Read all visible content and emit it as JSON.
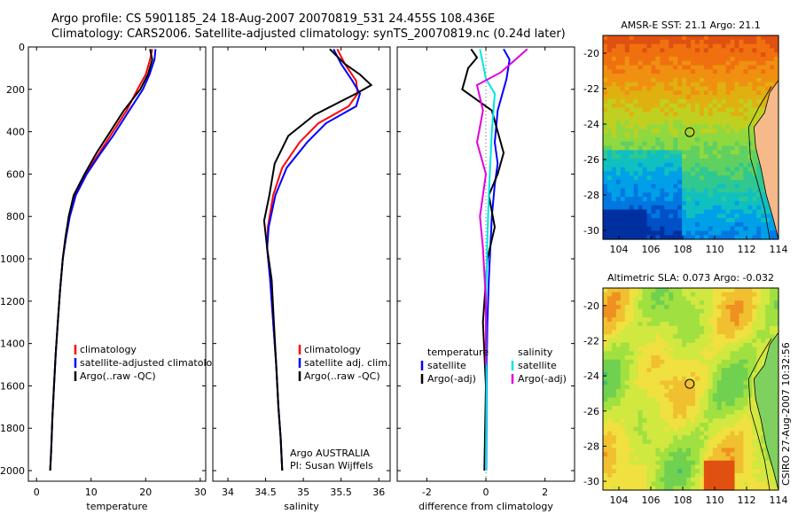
{
  "header": {
    "line1": "Argo profile: CS 5901185_24 18-Aug-2007 20070819_531 24.455S 108.436E",
    "line2": "Climatology: CARS2006. Satellite-adjusted climatology: synTS_20070819.nc (0.24d later)"
  },
  "colors": {
    "climatology": "#ff0000",
    "satellite": "#0000ff",
    "argo": "#000000",
    "salinity_satellite": "#00e5e5",
    "salinity_argo": "#e000e0"
  },
  "chart_data": [
    {
      "type": "line",
      "id": "temperature",
      "xlabel": "temperature",
      "ylim": [
        0,
        2050
      ],
      "xlim": [
        -1.5,
        31
      ],
      "xticks": [
        "0",
        "10",
        "20",
        "30"
      ],
      "yticks": [
        "0",
        "200",
        "400",
        "600",
        "800",
        "1000",
        "1200",
        "1400",
        "1600",
        "1800",
        "2000"
      ],
      "y_inverted": true,
      "legend": [
        "climatology",
        "satellite-adjusted climatolo",
        "Argo(..raw -QC)"
      ],
      "series": [
        {
          "name": "climatology",
          "color": "#ff0000",
          "x": [
            21.2,
            20.8,
            20.0,
            18.5,
            16.5,
            13.5,
            11.5,
            9.0,
            7.0,
            6.0,
            5.3,
            4.8,
            4.3,
            3.9,
            3.5,
            3.2,
            2.9,
            2.7,
            2.5
          ],
          "y": [
            10,
            60,
            130,
            200,
            300,
            420,
            500,
            600,
            700,
            800,
            900,
            1000,
            1150,
            1300,
            1450,
            1600,
            1750,
            1900,
            2000
          ]
        },
        {
          "name": "satellite-adjusted climatology",
          "color": "#0000ff",
          "x": [
            21.8,
            21.6,
            20.7,
            19.5,
            17.0,
            14.0,
            11.8,
            9.2,
            7.2,
            6.1,
            5.4,
            4.8,
            4.3,
            3.9,
            3.5,
            3.2,
            2.9,
            2.7,
            2.5
          ],
          "y": [
            10,
            60,
            130,
            200,
            300,
            420,
            500,
            600,
            700,
            800,
            900,
            1000,
            1150,
            1300,
            1450,
            1600,
            1750,
            1900,
            2000
          ]
        },
        {
          "name": "Argo(..raw -QC)",
          "color": "#000000",
          "x": [
            20.8,
            21.2,
            20.4,
            19.0,
            16.0,
            13.0,
            11.0,
            8.8,
            6.8,
            5.9,
            5.3,
            4.8,
            4.3,
            3.9,
            3.5,
            3.2,
            2.9,
            2.7,
            2.5
          ],
          "y": [
            10,
            60,
            130,
            200,
            300,
            420,
            500,
            600,
            700,
            800,
            900,
            1000,
            1150,
            1300,
            1450,
            1600,
            1750,
            1900,
            2000
          ]
        }
      ]
    },
    {
      "type": "line",
      "id": "salinity",
      "xlabel": "salinity",
      "ylim": [
        0,
        2050
      ],
      "xlim": [
        33.8,
        36.15
      ],
      "xticks": [
        "34",
        "34.5",
        "35",
        "35.5",
        "36"
      ],
      "y_inverted": true,
      "legend": [
        "climatology",
        "satellite adj. clim.",
        "Argo(..raw -QC)"
      ],
      "annotation": [
        "Argo AUSTRALIA",
        "PI: Susan Wijffels"
      ],
      "series": [
        {
          "name": "climatology",
          "color": "#ff0000",
          "x": [
            35.45,
            35.55,
            35.7,
            35.72,
            35.6,
            35.2,
            34.95,
            34.72,
            34.6,
            34.53,
            34.52,
            34.56,
            34.6,
            34.64,
            34.67,
            34.7,
            34.72
          ],
          "y": [
            10,
            80,
            160,
            220,
            280,
            360,
            450,
            570,
            700,
            850,
            950,
            1100,
            1300,
            1500,
            1700,
            1850,
            2000
          ]
        },
        {
          "name": "satellite adj. clim.",
          "color": "#0000ff",
          "x": [
            35.4,
            35.5,
            35.65,
            35.75,
            35.7,
            35.3,
            35.05,
            34.78,
            34.63,
            34.54,
            34.52,
            34.56,
            34.6,
            34.64,
            34.67,
            34.7,
            34.72
          ],
          "y": [
            10,
            80,
            160,
            220,
            280,
            360,
            450,
            570,
            700,
            850,
            950,
            1100,
            1300,
            1500,
            1700,
            1850,
            2000
          ]
        },
        {
          "name": "Argo(..raw -QC)",
          "color": "#000000",
          "x": [
            35.35,
            35.55,
            35.75,
            35.9,
            35.7,
            35.15,
            34.8,
            34.62,
            34.55,
            34.48,
            34.52,
            34.58,
            34.61,
            34.64,
            34.67,
            34.7,
            34.72
          ],
          "y": [
            10,
            80,
            130,
            180,
            220,
            320,
            420,
            550,
            700,
            820,
            950,
            1100,
            1300,
            1500,
            1700,
            1850,
            2000
          ]
        }
      ]
    },
    {
      "type": "line",
      "id": "difference",
      "xlabel": "difference from climatology",
      "ylim": [
        0,
        2050
      ],
      "xlim": [
        -3,
        3
      ],
      "xticks": [
        "-2",
        "0",
        "2"
      ],
      "y_inverted": true,
      "legend": [
        "temperature",
        "satellite",
        "Argo(-adj)",
        "salinity",
        "satellite",
        "Argo(-adj)"
      ],
      "series": [
        {
          "name": "temperature satellite",
          "color": "#0000ff",
          "x": [
            0.6,
            0.8,
            0.7,
            0.4,
            0.3,
            0.4,
            0.3,
            0.2,
            0.15,
            0.1,
            0.05,
            0.03,
            0.02,
            0.01
          ],
          "y": [
            10,
            60,
            150,
            300,
            450,
            550,
            650,
            800,
            950,
            1100,
            1300,
            1500,
            1800,
            2000
          ]
        },
        {
          "name": "temperature Argo(-adj)",
          "color": "#000000",
          "x": [
            -0.5,
            -0.3,
            -0.6,
            -0.7,
            -0.8,
            0.2,
            0.6,
            0.4,
            0.1,
            0.3,
            0.05,
            -0.1,
            0.0,
            -0.05
          ],
          "y": [
            10,
            50,
            100,
            150,
            200,
            300,
            500,
            600,
            700,
            850,
            1000,
            1300,
            1600,
            2000
          ]
        },
        {
          "name": "salinity satellite",
          "color": "#00e5e5",
          "x": [
            -0.2,
            -0.1,
            0.0,
            0.3,
            0.2,
            0.1,
            0.05,
            0.0,
            0.02,
            0.0
          ],
          "y": [
            10,
            80,
            150,
            220,
            400,
            700,
            900,
            1200,
            1600,
            2000
          ]
        },
        {
          "name": "salinity Argo(-adj)",
          "color": "#e000e0",
          "x": [
            1.4,
            1.0,
            0.5,
            -0.3,
            -0.1,
            -0.3,
            0.0,
            -0.2,
            -0.1,
            0.0,
            0.0
          ],
          "y": [
            10,
            60,
            120,
            180,
            300,
            450,
            600,
            800,
            950,
            1200,
            1500
          ]
        }
      ]
    }
  ],
  "maps": [
    {
      "title": "AMSR-E SST: 21.1 Argo: 21.1",
      "xticks": [
        "104",
        "106",
        "108",
        "110",
        "112",
        "114"
      ],
      "yticks": [
        "-20",
        "-22",
        "-24",
        "-26",
        "-28",
        "-30"
      ]
    },
    {
      "title": "Altimetric SLA: 0.073 Argo: -0.032",
      "xticks": [
        "104",
        "106",
        "108",
        "110",
        "112",
        "114"
      ],
      "yticks": [
        "-20",
        "-22",
        "-24",
        "-26",
        "-28",
        "-30"
      ]
    }
  ],
  "footer": "CSIRO 27-Aug-2007 10:32:56"
}
